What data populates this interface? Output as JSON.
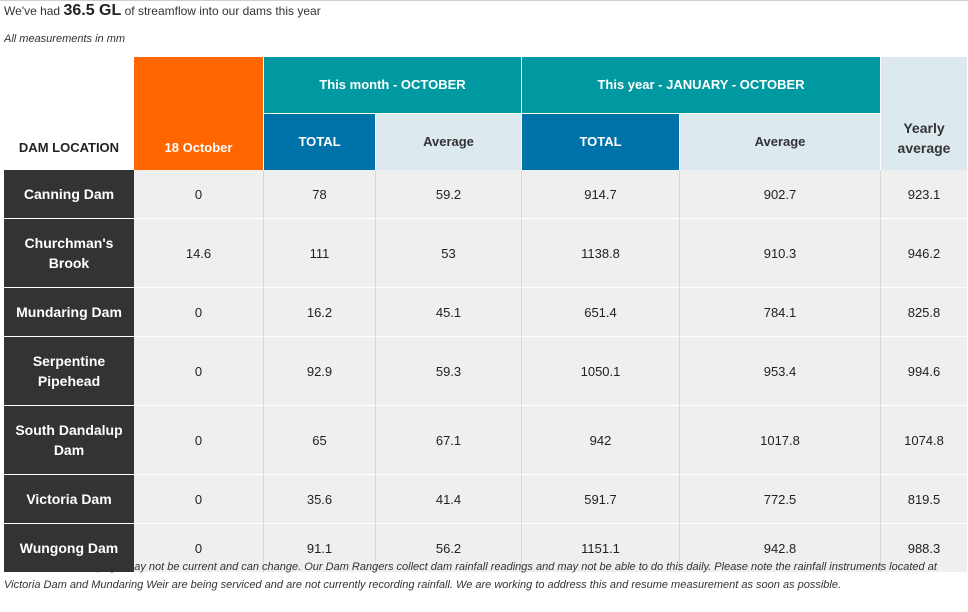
{
  "headline": {
    "prefix": "We've had",
    "amount": "36.5 GL",
    "suffix": "of streamflow into our dams this year"
  },
  "note": "All measurements in mm",
  "table": {
    "location_header": "DAM LOCATION",
    "date_header": "18 October",
    "month_group": "This month - OCTOBER",
    "year_group": "This year - JANUARY - OCTOBER",
    "total_label": "TOTAL",
    "average_label": "Average",
    "yearly_average_header": "Yearly average",
    "rows": [
      {
        "location": "Canning Dam",
        "day": "0",
        "month_total": "78",
        "month_avg": "59.2",
        "year_total": "914.7",
        "year_avg": "902.7",
        "yearly_avg": "923.1"
      },
      {
        "location": "Churchman's Brook",
        "day": "14.6",
        "month_total": "111",
        "month_avg": "53",
        "year_total": "1138.8",
        "year_avg": "910.3",
        "yearly_avg": "946.2"
      },
      {
        "location": "Mundaring Dam",
        "day": "0",
        "month_total": "16.2",
        "month_avg": "45.1",
        "year_total": "651.4",
        "year_avg": "784.1",
        "yearly_avg": "825.8"
      },
      {
        "location": "Serpentine Pipehead",
        "day": "0",
        "month_total": "92.9",
        "month_avg": "59.3",
        "year_total": "1050.1",
        "year_avg": "953.4",
        "yearly_avg": "994.6"
      },
      {
        "location": "South Dandalup Dam",
        "day": "0",
        "month_total": "65",
        "month_avg": "67.1",
        "year_total": "942",
        "year_avg": "1017.8",
        "yearly_avg": "1074.8"
      },
      {
        "location": "Victoria Dam",
        "day": "0",
        "month_total": "35.6",
        "month_avg": "41.4",
        "year_total": "591.7",
        "year_avg": "772.5",
        "yearly_avg": "819.5"
      },
      {
        "location": "Wungong Dam",
        "day": "0",
        "month_total": "91.1",
        "month_avg": "56.2",
        "year_total": "1151.1",
        "year_avg": "942.8",
        "yearly_avg": "988.3"
      }
    ]
  },
  "footer": "Information on this page may not be current and can change. Our Dam Rangers collect dam rainfall readings and may not be able to do this daily. Please note the rainfall instruments located at Victoria Dam and Mundaring Weir are being serviced and are not currently recording rainfall. We are working to address this and resume measurement as soon as possible.",
  "colors": {
    "date_header": "#ff6600",
    "group_header": "#0099a1",
    "total_header": "#0072aa",
    "average_header": "#dceaf0",
    "location_cell": "#333333",
    "data_cell": "#efefef"
  }
}
